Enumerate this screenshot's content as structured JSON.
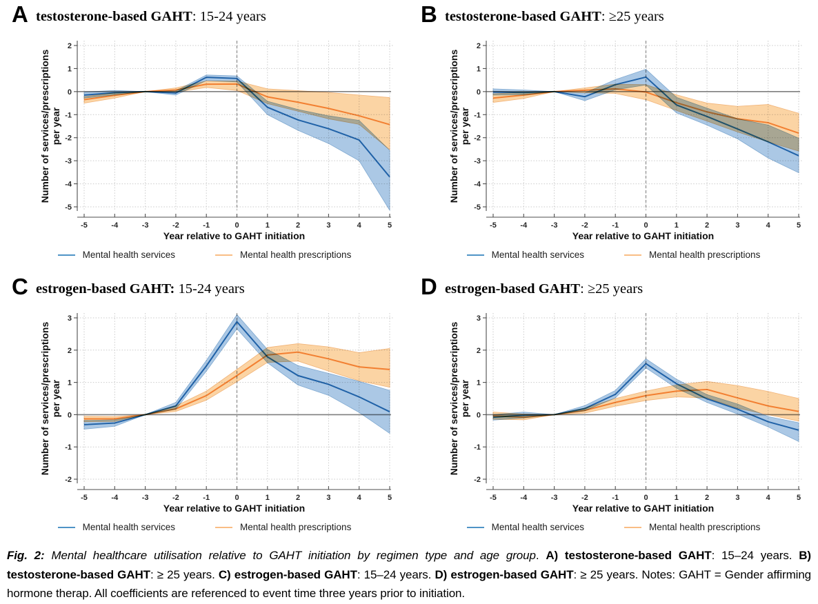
{
  "legend": {
    "services_label": "Mental health services",
    "prescriptions_label": "Mental health prescriptions"
  },
  "axes": {
    "x_label": "Year relative to GAHT initiation",
    "y_label_line1": "Number of services/prescriptions",
    "y_label_line2": "per year"
  },
  "colors": {
    "services_line": "#2e7cba",
    "services_band": "#abc8e5",
    "prescriptions_line": "#f6994b",
    "prescriptions_band": "#fbd4a4",
    "zero_line": "#7e7e7e",
    "reference_line": "#8a8a8a",
    "gridline": "#c9c9c9"
  },
  "chart_data": [
    {
      "type": "line",
      "panel_label": "A",
      "title_bold": "testosterone-based GAHT",
      "title_rest": ": 15-24 years",
      "x": [
        -5,
        -4,
        -3,
        -2,
        -1,
        0,
        1,
        2,
        3,
        4,
        5
      ],
      "xticks": [
        -5,
        -4,
        -3,
        -2,
        -1,
        0,
        1,
        2,
        3,
        4,
        5
      ],
      "yticks": [
        2,
        1,
        0,
        -1,
        -2,
        -3,
        -4,
        -5
      ],
      "reference_line_x": 0,
      "zero_line_y": 0,
      "series": [
        {
          "name": "Mental health services",
          "key": "services",
          "values": [
            -0.15,
            -0.05,
            0,
            -0.06,
            0.62,
            0.57,
            -0.68,
            -1.23,
            -1.61,
            -2.1,
            -3.7
          ],
          "ci_lower": [
            -0.28,
            -0.14,
            0,
            -0.15,
            0.48,
            0.42,
            -1.0,
            -1.68,
            -2.25,
            -3.0,
            -5.15
          ],
          "ci_upper": [
            -0.02,
            0.05,
            0,
            0.03,
            0.72,
            0.68,
            -0.42,
            -0.78,
            -1.05,
            -1.25,
            -2.55
          ]
        },
        {
          "name": "Mental health prescriptions",
          "key": "prescriptions",
          "values": [
            -0.35,
            -0.16,
            0,
            0.07,
            0.32,
            0.33,
            -0.23,
            -0.46,
            -0.73,
            -1.05,
            -1.43
          ],
          "ci_lower": [
            -0.5,
            -0.28,
            0,
            -0.02,
            0.18,
            0.05,
            -0.52,
            -0.85,
            -1.18,
            -1.42,
            -2.52
          ],
          "ci_upper": [
            -0.22,
            -0.05,
            0,
            0.16,
            0.46,
            0.46,
            0.12,
            0.04,
            -0.04,
            -0.15,
            -0.26
          ]
        }
      ]
    },
    {
      "type": "line",
      "panel_label": "B",
      "title_bold": "testosterone-based GAHT",
      "title_rest": ": ≥25 years",
      "x": [
        -5,
        -4,
        -3,
        -2,
        -1,
        0,
        1,
        2,
        3,
        4,
        5
      ],
      "xticks": [
        -5,
        -4,
        -3,
        -2,
        -1,
        0,
        1,
        2,
        3,
        4,
        5
      ],
      "yticks": [
        2,
        1,
        0,
        -1,
        -2,
        -3,
        -4,
        -5
      ],
      "reference_line_x": 0,
      "zero_line_y": 0,
      "series": [
        {
          "name": "Mental health services",
          "key": "services",
          "values": [
            -0.02,
            -0.04,
            0,
            -0.22,
            0.3,
            0.63,
            -0.58,
            -1.08,
            -1.62,
            -2.18,
            -2.78
          ],
          "ci_lower": [
            -0.15,
            -0.14,
            0,
            -0.39,
            0.08,
            0.29,
            -0.92,
            -1.45,
            -2.05,
            -2.88,
            -3.52
          ],
          "ci_upper": [
            0.12,
            0.07,
            0,
            -0.06,
            0.52,
            0.97,
            -0.25,
            -0.72,
            -1.18,
            -1.45,
            -2.02
          ]
        },
        {
          "name": "Mental health prescriptions",
          "key": "prescriptions",
          "values": [
            -0.28,
            -0.15,
            0,
            0.06,
            0.12,
            -0.02,
            -0.48,
            -0.88,
            -1.18,
            -1.35,
            -1.8
          ],
          "ci_lower": [
            -0.47,
            -0.3,
            0,
            -0.05,
            -0.08,
            -0.35,
            -0.82,
            -1.28,
            -1.75,
            -2.18,
            -2.58
          ],
          "ci_upper": [
            -0.1,
            -0.02,
            0,
            0.16,
            0.32,
            0.3,
            -0.14,
            -0.5,
            -0.64,
            -0.56,
            -0.94
          ]
        }
      ]
    },
    {
      "type": "line",
      "panel_label": "C",
      "title_bold": "estrogen-based GAHT:",
      "title_rest": " 15-24 years",
      "x": [
        -5,
        -4,
        -3,
        -2,
        -1,
        0,
        1,
        2,
        3,
        4,
        5
      ],
      "xticks": [
        -5,
        -4,
        -3,
        -2,
        -1,
        0,
        1,
        2,
        3,
        4,
        5
      ],
      "yticks": [
        3,
        2,
        1,
        0,
        -1,
        -2
      ],
      "reference_line_x": 0,
      "zero_line_y": 0,
      "series": [
        {
          "name": "Mental health services",
          "key": "services",
          "values": [
            -0.31,
            -0.26,
            0,
            0.27,
            1.51,
            2.88,
            1.79,
            1.21,
            0.94,
            0.55,
            0.09
          ],
          "ci_lower": [
            -0.45,
            -0.36,
            0,
            0.17,
            1.35,
            2.66,
            1.61,
            0.92,
            0.6,
            0.07,
            -0.58
          ],
          "ci_upper": [
            -0.18,
            -0.16,
            0,
            0.38,
            1.68,
            3.1,
            2.02,
            1.52,
            1.28,
            1.03,
            0.75
          ]
        },
        {
          "name": "Mental health prescriptions",
          "key": "prescriptions",
          "values": [
            -0.13,
            -0.13,
            0,
            0.18,
            0.59,
            1.21,
            1.85,
            1.94,
            1.73,
            1.48,
            1.4
          ],
          "ci_lower": [
            -0.22,
            -0.21,
            0,
            0.1,
            0.45,
            1.02,
            1.62,
            1.66,
            1.35,
            1.05,
            0.85
          ],
          "ci_upper": [
            -0.05,
            -0.06,
            0,
            0.27,
            0.73,
            1.4,
            2.08,
            2.2,
            2.1,
            1.92,
            2.05
          ]
        }
      ]
    },
    {
      "type": "line",
      "panel_label": "D",
      "title_bold": "estrogen-based GAHT",
      "title_rest": ": ≥25 years",
      "x": [
        -5,
        -4,
        -3,
        -2,
        -1,
        0,
        1,
        2,
        3,
        4,
        5
      ],
      "xticks": [
        -5,
        -4,
        -3,
        -2,
        -1,
        0,
        1,
        2,
        3,
        4,
        5
      ],
      "yticks": [
        3,
        2,
        1,
        0,
        -1,
        -2
      ],
      "reference_line_x": 0,
      "zero_line_y": 0,
      "series": [
        {
          "name": "Mental health services",
          "key": "services",
          "values": [
            -0.08,
            -0.02,
            0,
            0.19,
            0.63,
            1.58,
            0.96,
            0.49,
            0.17,
            -0.22,
            -0.48
          ],
          "ci_lower": [
            -0.17,
            -0.1,
            0,
            0.12,
            0.52,
            1.45,
            0.82,
            0.38,
            0.02,
            -0.38,
            -0.83
          ],
          "ci_upper": [
            0.0,
            0.08,
            0,
            0.28,
            0.75,
            1.73,
            1.1,
            0.62,
            0.33,
            -0.06,
            -0.25
          ]
        },
        {
          "name": "Mental health prescriptions",
          "key": "prescriptions",
          "values": [
            -0.04,
            -0.08,
            0,
            0.13,
            0.38,
            0.59,
            0.73,
            0.78,
            0.52,
            0.27,
            0.1
          ],
          "ci_lower": [
            -0.14,
            -0.16,
            0,
            0.05,
            0.26,
            0.44,
            0.55,
            0.52,
            0.2,
            0.0,
            -0.2
          ],
          "ci_upper": [
            0.08,
            0.02,
            0,
            0.2,
            0.5,
            0.73,
            0.92,
            1.03,
            0.9,
            0.72,
            0.5
          ]
        }
      ]
    }
  ],
  "caption": {
    "segments": [
      {
        "text": "Fig. 2: ",
        "bold": true,
        "italic": true
      },
      {
        "text": "Mental healthcare utilisation relative to GAHT initiation by regimen type and age group",
        "italic": true
      },
      {
        "text": ". "
      },
      {
        "text": "A) testosterone-based GAHT",
        "bold": true
      },
      {
        "text": ": 15–24 years. "
      },
      {
        "text": "B) testosterone-based GAHT",
        "bold": true
      },
      {
        "text": ": ≥ 25 years. "
      },
      {
        "text": "C) estrogen-based GAHT",
        "bold": true
      },
      {
        "text": ": 15–24 years. "
      },
      {
        "text": "D) estrogen-based GAHT",
        "bold": true
      },
      {
        "text": ": ≥ 25 years. "
      },
      {
        "text": "Notes: GAHT = Gender affirming hormone therap. All coefficients are referenced to event time three years prior to initiation."
      }
    ]
  }
}
